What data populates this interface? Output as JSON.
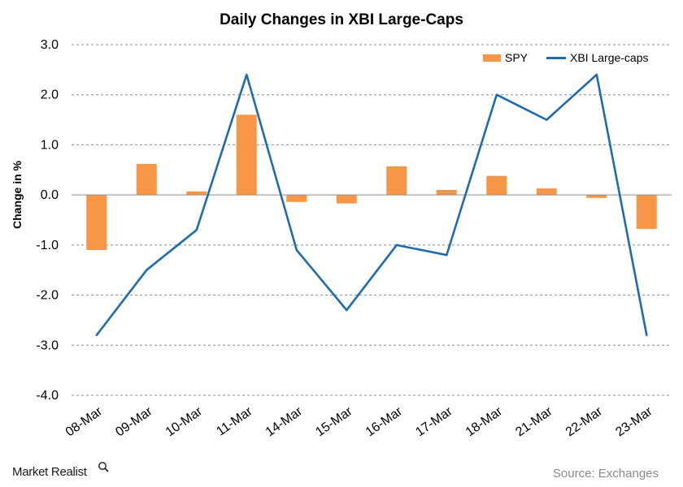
{
  "chart_data": {
    "type": "bar+line",
    "title": "Daily  Changes  in  XBI Large-Caps",
    "ylabel": "Change in %",
    "xlabel": "",
    "ylim": [
      -4.0,
      3.0
    ],
    "yticks": [
      "3.0",
      "2.0",
      "1.0",
      "0.0",
      "-1.0",
      "-2.0",
      "-3.0",
      "-4.0"
    ],
    "categories": [
      "08-Mar",
      "09-Mar",
      "10-Mar",
      "11-Mar",
      "14-Mar",
      "15-Mar",
      "16-Mar",
      "17-Mar",
      "18-Mar",
      "21-Mar",
      "22-Mar",
      "23-Mar"
    ],
    "series": [
      {
        "name": "SPY",
        "kind": "bar",
        "color": "#F79646",
        "values": [
          -1.1,
          0.62,
          0.07,
          1.6,
          -0.14,
          -0.17,
          0.57,
          0.1,
          0.38,
          0.13,
          -0.06,
          -0.68
        ]
      },
      {
        "name": "XBI Large-caps",
        "kind": "line",
        "color": "#1F6BB0",
        "values": [
          -2.8,
          -1.5,
          -0.7,
          2.4,
          -1.1,
          -2.3,
          -1.0,
          -1.2,
          2.0,
          1.5,
          2.4,
          -2.8
        ]
      }
    ],
    "grid": true,
    "legend": "top-right"
  },
  "footer": {
    "brand": "Market Realist",
    "source": "Source: Exchanges"
  }
}
